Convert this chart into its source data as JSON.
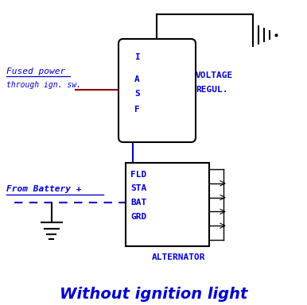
{
  "bg_color": "#ffffff",
  "blue": "#0000cc",
  "dark_red": "#8b0000",
  "black": "#000000",
  "title": "Without ignition light",
  "title_fontsize": 14,
  "voltage_regul_label1": "VOLTAGE",
  "voltage_regul_label2": "REGUL.",
  "alternator_label": "ALTERNATOR",
  "vr_pins": [
    "I",
    "A",
    "S",
    "F"
  ],
  "alt_pins": [
    "FLD",
    "STA",
    "BAT",
    "GRD"
  ],
  "fused_power_line1": "Fused power",
  "fused_power_line2": "through ign. sw.",
  "from_battery": "From Battery + "
}
